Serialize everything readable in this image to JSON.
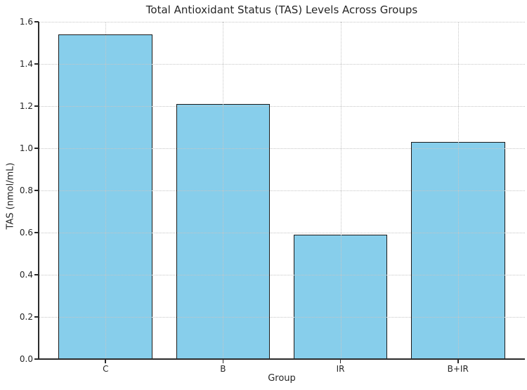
{
  "chart_data": {
    "type": "bar",
    "title": "Total Antioxidant Status (TAS) Levels Across Groups",
    "xlabel": "Group",
    "ylabel": "TAS (nmol/mL)",
    "categories": [
      "C",
      "B",
      "IR",
      "B+IR"
    ],
    "values": [
      1.54,
      1.21,
      0.59,
      1.03
    ],
    "ylim": [
      0,
      1.6
    ],
    "yticks": [
      "0.0",
      "0.2",
      "0.4",
      "0.6",
      "0.8",
      "1.0",
      "1.2",
      "1.4",
      "1.6"
    ],
    "xlim": [
      -0.57,
      3.57
    ],
    "bar_width_data_units": 0.8,
    "grid": "dotted, both axes, drawn above bars",
    "legend": "none",
    "bar_fill_color": "#87CEEB",
    "bar_edge_color": "#1a1a1a",
    "grid_color": "#c6c6c6",
    "spine_color": "#2b2b2b",
    "text_color": "#262626",
    "background_color": "#ffffff"
  }
}
